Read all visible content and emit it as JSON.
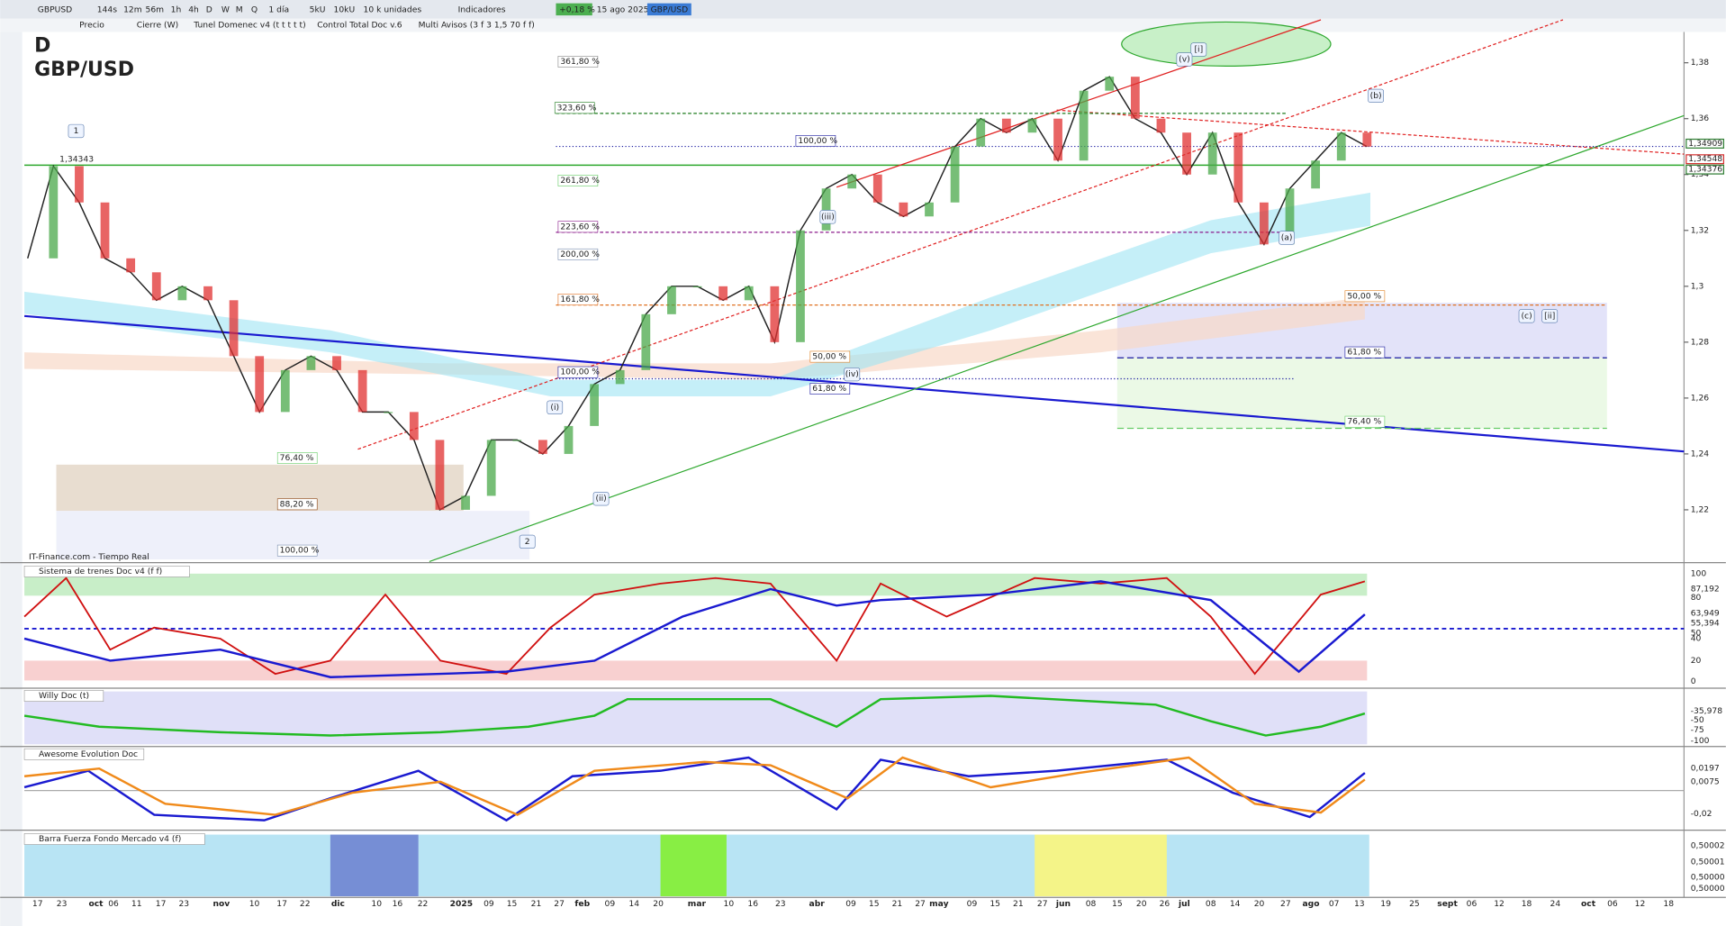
{
  "toolbar": {
    "items": [
      "GBPUSD",
      "144s",
      "12m",
      "56m",
      "1h",
      "4h",
      "D",
      "W",
      "M",
      "Q",
      "5kU",
      "10kU",
      "10 k unidades",
      "1 día",
      "Indicadores"
    ],
    "change": "+0,18 %",
    "date": "15 ago 2025",
    "symbol": "GBP/USD"
  },
  "indicators": [
    "Precio",
    "Cierre (W)",
    "Tunel Domenec v4 (t t t t t)",
    "Control Total Doc v.6",
    "Multi Avisos (3 f 3 1,5 70 f f)"
  ],
  "chart": {
    "period": "D",
    "symbol": "GBP/USD",
    "source": "IT-Finance.com - Tiempo Real",
    "ylim": [
      1.2,
      1.39
    ],
    "price_ticks": [
      {
        "value": 1.38,
        "label": "1,38"
      },
      {
        "value": 1.36,
        "label": "1,36"
      },
      {
        "value": 1.34,
        "label": "1,34"
      },
      {
        "value": 1.32,
        "label": "1,32"
      },
      {
        "value": 1.3,
        "label": "1,3"
      },
      {
        "value": 1.28,
        "label": "1,28"
      },
      {
        "value": 1.26,
        "label": "1,26"
      },
      {
        "value": 1.24,
        "label": "1,24"
      },
      {
        "value": 1.22,
        "label": "1,22"
      }
    ],
    "price_labels": [
      {
        "value": 1.34909,
        "label": "1,34909",
        "color": "#2e7d32"
      },
      {
        "value": 1.34548,
        "label": "1,34548",
        "color": "#d32f2f"
      },
      {
        "value": 1.34376,
        "label": "1,34376",
        "color": "#2e7d32"
      }
    ],
    "high_label": {
      "value": 1.34343,
      "label": "1,34343"
    },
    "closes": [
      1.31,
      1.343,
      1.33,
      1.31,
      1.305,
      1.295,
      1.3,
      1.295,
      1.275,
      1.255,
      1.27,
      1.275,
      1.27,
      1.255,
      1.255,
      1.245,
      1.22,
      1.225,
      1.245,
      1.245,
      1.24,
      1.25,
      1.265,
      1.27,
      1.29,
      1.3,
      1.3,
      1.295,
      1.3,
      1.28,
      1.32,
      1.335,
      1.34,
      1.33,
      1.325,
      1.33,
      1.35,
      1.36,
      1.355,
      1.36,
      1.345,
      1.37,
      1.375,
      1.36,
      1.355,
      1.34,
      1.355,
      1.33,
      1.315,
      1.335,
      1.345,
      1.355,
      1.35
    ],
    "fib_labels": [
      {
        "text": "361,80 %",
        "color": "#888888"
      },
      {
        "text": "323,60 %",
        "color": "#1b7a1b"
      },
      {
        "text": "100,00 %",
        "color": "#1a1aa0"
      },
      {
        "text": "261,80 %",
        "color": "#66cc66"
      },
      {
        "text": "223,60 %",
        "color": "#8b1a8b"
      },
      {
        "text": "200,00 %",
        "color": "#7a8fb0"
      },
      {
        "text": "161,80 %",
        "color": "#e07020"
      },
      {
        "text": "100,00 %",
        "color": "#1a1aa0"
      },
      {
        "text": "50,00 %",
        "color": "#e08020"
      },
      {
        "text": "61,80 %",
        "color": "#1a1aa0"
      },
      {
        "text": "76,40 %",
        "color": "#66cc66"
      },
      {
        "text": "88,20 %",
        "color": "#8b4513"
      },
      {
        "text": "100,00 %",
        "color": "#7a8fb0"
      },
      {
        "text": "50,00 %",
        "color": "#e08020"
      },
      {
        "text": "61,80 %",
        "color": "#1a1aa0"
      },
      {
        "text": "76,40 %",
        "color": "#66cc66"
      }
    ],
    "waves": [
      "[i]",
      "(v)",
      "(b)",
      "1",
      "(iii)",
      "(iv)",
      "(i)",
      "(ii)",
      "2",
      "(a)",
      "(c)",
      "[ii]"
    ],
    "dates": [
      "17",
      "23",
      "oct",
      "06",
      "11",
      "17",
      "23",
      "nov",
      "10",
      "17",
      "22",
      "dic",
      "10",
      "16",
      "22",
      "2025",
      "09",
      "15",
      "21",
      "27",
      "feb",
      "09",
      "14",
      "20",
      "mar",
      "10",
      "16",
      "23",
      "abr",
      "09",
      "15",
      "21",
      "27",
      "may",
      "09",
      "15",
      "21",
      "27",
      "jun",
      "08",
      "15",
      "20",
      "26",
      "jul",
      "08",
      "14",
      "20",
      "27",
      "ago",
      "07",
      "13",
      "19",
      "25",
      "sept",
      "06",
      "12",
      "18",
      "24",
      "oct",
      "06",
      "12",
      "18"
    ]
  },
  "panels": [
    {
      "title": "Sistema de trenes Doc v4 (f f)",
      "ticks": [
        "100",
        "87,192",
        "80",
        "63,949",
        "55,394",
        "50",
        "40",
        "20",
        "0"
      ]
    },
    {
      "title": "Willy Doc (t)",
      "ticks": [
        "-35,978",
        "-50",
        "-75",
        "-100"
      ]
    },
    {
      "title": "Awesome Evolution Doc",
      "ticks": [
        "0,0197",
        "0,0075",
        "-0,02"
      ]
    },
    {
      "title": "Barra Fuerza Fondo Mercado v4 (f)",
      "ticks": [
        "0,50002",
        "0,50001",
        "0,50000",
        "0,50000"
      ]
    }
  ]
}
